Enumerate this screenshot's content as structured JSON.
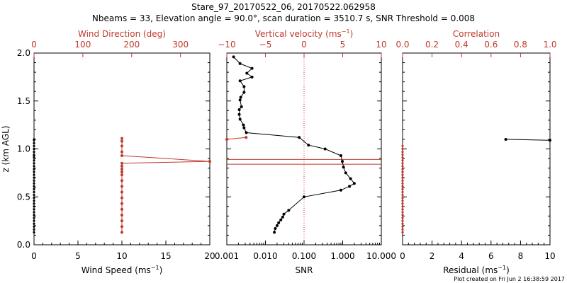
{
  "title_line1": "Stare_97_20170522_06, 20170522.062958",
  "title_line2": "Nbeams = 33, Elevation angle = 90.0°, scan duration = 3510.7 s, SNR Threshold = 0.008",
  "footer": "Plot created on Fri Jun  2 16:38:59 2017",
  "colors": {
    "black": "#000000",
    "red": "#c0392b"
  },
  "chart_data": [
    {
      "type": "scatter",
      "title": "Wind Speed / Wind Direction",
      "xlabel_bottom": "Wind Speed (ms",
      "xlabel_bottom_exp": "−1",
      "xlabel_bottom_close": ")",
      "xlabel_top": "Wind Direction (deg)",
      "ylabel": "z (km AGL)",
      "xlim_bottom": [
        0,
        20
      ],
      "xlim_top": [
        0,
        360
      ],
      "ylim": [
        0,
        2
      ],
      "bottom_ticks": [
        "0",
        "5",
        "10",
        "15",
        "20"
      ],
      "top_ticks": [
        "0",
        "100",
        "200",
        "300"
      ],
      "y_ticks": [
        "0.0",
        "0.5",
        "1.0",
        "1.5",
        "2.0"
      ],
      "series": [
        {
          "name": "Wind Speed",
          "color": "#000000",
          "x": [
            0,
            0,
            0,
            0,
            0,
            0,
            0,
            0,
            0,
            0,
            0,
            0,
            0,
            0,
            0,
            0,
            0,
            0,
            0,
            0,
            0,
            0,
            0,
            0,
            0,
            0,
            0,
            0,
            0,
            0,
            0,
            0,
            0,
            0,
            0,
            0
          ],
          "y": [
            0.13,
            0.16,
            0.19,
            0.22,
            0.25,
            0.28,
            0.31,
            0.34,
            0.37,
            0.4,
            0.43,
            0.46,
            0.49,
            0.52,
            0.55,
            0.58,
            0.61,
            0.64,
            0.67,
            0.7,
            0.73,
            0.76,
            0.79,
            0.82,
            0.85,
            0.88,
            0.91,
            0.94,
            0.97,
            1.0,
            1.03,
            1.06,
            1.09,
            1.0,
            0.93,
            1.1
          ]
        },
        {
          "name": "Wind Direction",
          "color": "#c0392b",
          "x": [
            180,
            180,
            180,
            180,
            180,
            180,
            180,
            180,
            180,
            180,
            180,
            180,
            180,
            180,
            180,
            360,
            180,
            180,
            180,
            180,
            180
          ],
          "y": [
            0.13,
            0.19,
            0.25,
            0.31,
            0.37,
            0.43,
            0.49,
            0.55,
            0.61,
            0.67,
            0.73,
            0.76,
            0.79,
            0.82,
            0.85,
            0.87,
            0.93,
            0.97,
            1.03,
            1.08,
            1.11
          ]
        }
      ]
    },
    {
      "type": "line",
      "title": "SNR / Vertical velocity",
      "xlabel_bottom": "SNR",
      "xlabel_top": "Vertical velocity (ms",
      "xlabel_top_exp": "−1",
      "xlabel_top_close": ")",
      "xlim_bottom_log": [
        0.001,
        10
      ],
      "xlim_top": [
        -10,
        10
      ],
      "ylim": [
        0,
        2
      ],
      "bottom_ticks": [
        "0.001",
        "0.010",
        "0.100",
        "1.000",
        "10.000"
      ],
      "top_ticks": [
        "−10",
        "−5",
        "0",
        "5",
        "10"
      ],
      "threshold_snr": 0.1,
      "red_hlines_km": [
        0.84,
        0.89
      ],
      "series": [
        {
          "name": "SNR",
          "color": "#000000",
          "x": [
            0.017,
            0.018,
            0.02,
            0.022,
            0.025,
            0.028,
            0.03,
            0.04,
            0.1,
            0.9,
            1.5,
            2.0,
            1.6,
            1.2,
            1.05,
            0.98,
            0.9,
            0.35,
            0.13,
            0.075,
            0.0032,
            0.0028,
            0.0027,
            0.0022,
            0.0021,
            0.0021,
            0.0024,
            0.0022,
            0.0023,
            0.0028,
            0.0028,
            0.0022,
            0.0045,
            0.0033,
            0.0045,
            0.0022,
            0.0015
          ],
          "y": [
            0.13,
            0.17,
            0.2,
            0.23,
            0.26,
            0.29,
            0.32,
            0.36,
            0.5,
            0.57,
            0.61,
            0.64,
            0.69,
            0.75,
            0.81,
            0.87,
            0.93,
            1.0,
            1.04,
            1.12,
            1.17,
            1.22,
            1.25,
            1.31,
            1.36,
            1.41,
            1.44,
            1.51,
            1.54,
            1.59,
            1.65,
            1.71,
            1.75,
            1.79,
            1.84,
            1.89,
            1.96
          ]
        },
        {
          "name": "Vertical velocity",
          "color": "#c0392b",
          "x": [
            -7.5,
            -10
          ],
          "y": [
            1.12,
            1.1
          ]
        }
      ]
    },
    {
      "type": "scatter",
      "title": "Correlation / Residual",
      "xlabel_bottom": "Residual (ms",
      "xlabel_bottom_exp": "−1",
      "xlabel_bottom_close": ")",
      "xlabel_top": "Correlation",
      "xlim_bottom": [
        0,
        10
      ],
      "xlim_top": [
        0,
        1
      ],
      "ylim": [
        0,
        2
      ],
      "bottom_ticks": [
        "0",
        "2",
        "4",
        "6",
        "8",
        "10"
      ],
      "top_ticks": [
        "0.0",
        "0.2",
        "0.4",
        "0.6",
        "0.8",
        "1.0"
      ],
      "series": [
        {
          "name": "Residual",
          "color": "#000000",
          "x": [
            7.0,
            10.0
          ],
          "y": [
            1.1,
            1.09
          ]
        },
        {
          "name": "Correlation",
          "color": "#c0392b",
          "x": [
            0,
            0,
            0,
            0,
            0,
            0,
            0,
            0,
            0,
            0,
            0,
            0,
            0,
            0,
            0,
            0,
            0,
            0,
            0,
            0,
            0,
            0,
            0,
            0,
            0,
            0,
            0,
            0,
            0,
            0,
            0,
            0,
            0
          ],
          "y": [
            0.13,
            0.16,
            0.19,
            0.22,
            0.25,
            0.28,
            0.31,
            0.34,
            0.37,
            0.4,
            0.43,
            0.46,
            0.49,
            0.52,
            0.55,
            0.58,
            0.61,
            0.64,
            0.67,
            0.7,
            0.73,
            0.76,
            0.79,
            0.82,
            0.85,
            0.88,
            0.91,
            0.94,
            0.97,
            1.0,
            1.03,
            0.76,
            0.7
          ]
        }
      ]
    }
  ]
}
